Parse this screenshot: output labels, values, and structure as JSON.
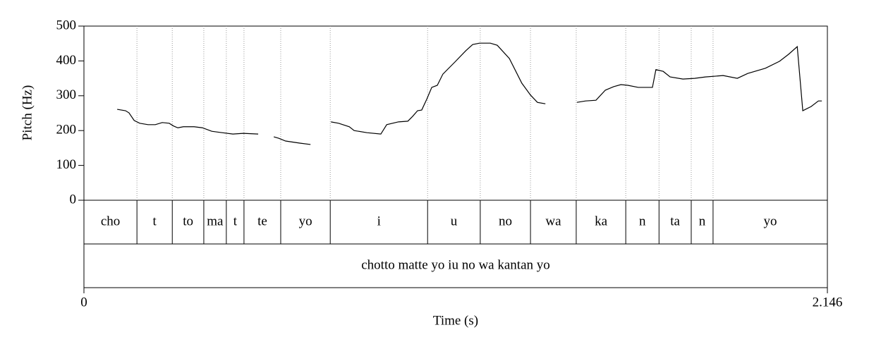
{
  "chart_data": {
    "type": "line",
    "ylabel": "Pitch (Hz)",
    "xlabel": "Time (s)",
    "xlim": [
      0,
      2.146
    ],
    "xticks": [
      0,
      2.146
    ],
    "ylim": [
      0,
      500
    ],
    "yticks": [
      0,
      100,
      200,
      300,
      400,
      500
    ],
    "color": "#000000",
    "x": [
      0.096,
      0.12,
      0.13,
      0.145,
      0.161,
      0.185,
      0.206,
      0.226,
      0.246,
      0.259,
      0.271,
      0.287,
      0.318,
      0.342,
      0.369,
      0.399,
      0.43,
      0.46,
      0.503,
      0.525,
      0.548,
      0.562,
      0.582,
      0.623,
      0.654,
      0.683,
      0.713,
      0.735,
      0.766,
      0.78,
      0.817,
      0.857,
      0.874,
      0.908,
      0.935,
      0.949,
      0.963,
      0.975,
      0.99,
      1.004,
      1.02,
      1.036,
      1.071,
      1.102,
      1.122,
      1.142,
      1.173,
      1.193,
      1.228,
      1.264,
      1.289,
      1.309,
      1.332,
      1.378,
      1.423,
      1.448,
      1.478,
      1.505,
      1.529,
      1.55,
      1.57,
      1.6,
      1.621,
      1.641,
      1.651,
      1.672,
      1.692,
      1.729,
      1.763,
      1.794,
      1.845,
      1.886,
      1.916,
      1.967,
      2.008,
      2.034,
      2.059,
      2.075,
      2.099,
      2.12,
      2.13
    ],
    "values": [
      261,
      257,
      251,
      229,
      221,
      217,
      217,
      223,
      221,
      213,
      208,
      211,
      211,
      208,
      198,
      194,
      190,
      192,
      190,
      null,
      182,
      178,
      170,
      164,
      160,
      null,
      225,
      221,
      211,
      200,
      194,
      190,
      217,
      225,
      227,
      241,
      257,
      259,
      291,
      324,
      330,
      362,
      397,
      429,
      447,
      451,
      451,
      445,
      407,
      336,
      302,
      281,
      277,
      null,
      281,
      285,
      287,
      316,
      326,
      332,
      330,
      324,
      324,
      324,
      375,
      370,
      354,
      348,
      350,
      354,
      358,
      350,
      364,
      379,
      399,
      419,
      441,
      257,
      269,
      285,
      285
    ],
    "tiers": [
      {
        "boundaries": [
          0,
          0.153,
          0.255,
          0.346,
          0.411,
          0.462,
          0.568,
          0.711,
          0.992,
          1.144,
          1.289,
          1.421,
          1.564,
          1.66,
          1.753,
          1.816,
          2.146
        ],
        "labels": [
          "cho",
          "t",
          "to",
          "ma",
          "t",
          "te",
          "yo",
          "i",
          "u",
          "no",
          "wa",
          "ka",
          "n",
          "ta",
          "n",
          "yo"
        ]
      },
      {
        "boundaries": [
          0,
          2.146
        ],
        "labels": [
          "chotto matte yo iu no wa kantan yo"
        ]
      }
    ]
  }
}
